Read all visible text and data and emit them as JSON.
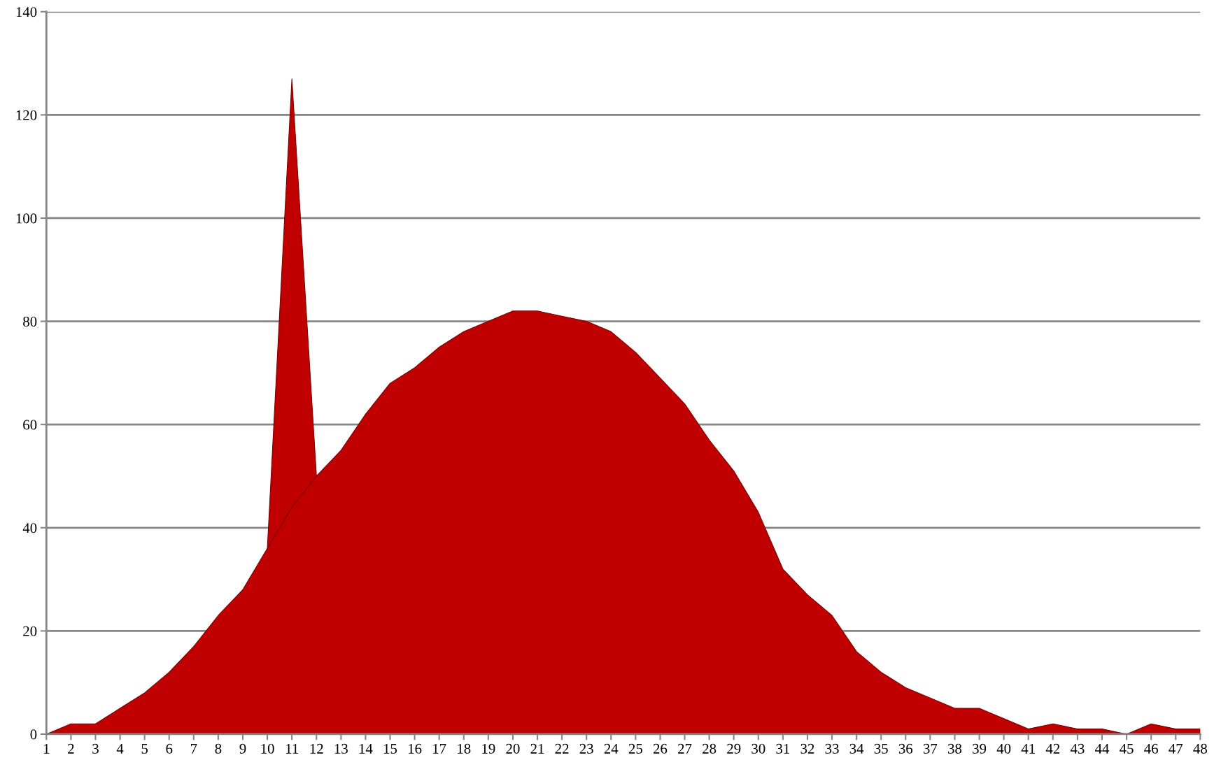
{
  "chart_data": {
    "type": "area",
    "x": [
      1,
      2,
      3,
      4,
      5,
      6,
      7,
      8,
      9,
      10,
      11,
      12,
      13,
      14,
      15,
      16,
      17,
      18,
      19,
      20,
      21,
      22,
      23,
      24,
      25,
      26,
      27,
      28,
      29,
      30,
      31,
      32,
      33,
      34,
      35,
      36,
      37,
      38,
      39,
      40,
      41,
      42,
      43,
      44,
      45,
      46,
      47,
      48
    ],
    "series": [
      {
        "color": "#c00000",
        "values": [
          null,
          null,
          null,
          null,
          null,
          null,
          null,
          null,
          null,
          36,
          127,
          50,
          null,
          null,
          null,
          null,
          null,
          null,
          null,
          null,
          null,
          null,
          null,
          null,
          null,
          null,
          null,
          null,
          null,
          null,
          null,
          null,
          null,
          null,
          null,
          null,
          null,
          null,
          null,
          null,
          null,
          null,
          null,
          null,
          null,
          null,
          null,
          null
        ]
      },
      {
        "color": "#c00000",
        "values": [
          0,
          2,
          2,
          5,
          8,
          12,
          17,
          23,
          28,
          36,
          44,
          50,
          55,
          62,
          68,
          71,
          75,
          78,
          80,
          82,
          82,
          81,
          80,
          78,
          74,
          69,
          64,
          57,
          51,
          43,
          32,
          27,
          23,
          16,
          12,
          9,
          7,
          5,
          5,
          3,
          1,
          2,
          1,
          1,
          0,
          2,
          1,
          1
        ]
      }
    ],
    "xlim": [
      1,
      48
    ],
    "xticks": [
      1,
      2,
      3,
      4,
      5,
      6,
      7,
      8,
      9,
      10,
      11,
      12,
      13,
      14,
      15,
      16,
      17,
      18,
      19,
      20,
      21,
      22,
      23,
      24,
      25,
      26,
      27,
      28,
      29,
      30,
      31,
      32,
      33,
      34,
      35,
      36,
      37,
      38,
      39,
      40,
      41,
      42,
      43,
      44,
      45,
      46,
      47,
      48
    ],
    "ylim": [
      0,
      140
    ],
    "yticks": [
      0,
      20,
      40,
      60,
      80,
      100,
      120,
      140
    ],
    "grid": "y",
    "legend": false
  }
}
